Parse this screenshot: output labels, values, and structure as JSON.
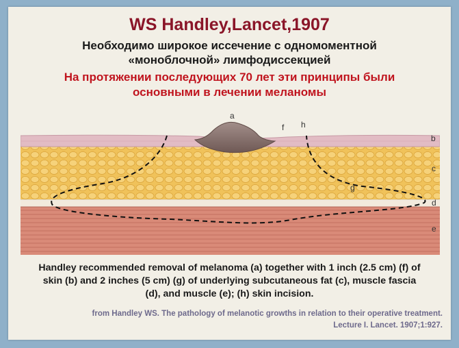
{
  "title": "WS Handley,Lancet,1907",
  "subtitle_line1": "Необходимо широкое иссечение с одномоментной",
  "subtitle_line2": "«моноблочной» лимфодиссекцией",
  "highlight_line1": "На протяжении последующих 70 лет эти принципы были",
  "highlight_line2": "основными в лечении меланомы",
  "diagram": {
    "labels": {
      "a": "a",
      "b": "b",
      "c": "c",
      "d": "d",
      "e": "e",
      "f": "f",
      "g": "g",
      "h": "h"
    },
    "colors": {
      "skin": "#e2bcc4",
      "fat": "#f0c25a",
      "fascia": "#f2eadd",
      "muscle": "#d98a78",
      "tumor": "#8b7571",
      "incision": "#111111"
    }
  },
  "caption_line1": "Handley recommended removal of melanoma (a) together with 1 inch (2.5 cm) (f) of",
  "caption_line2": "skin (b) and 2 inches (5 cm) (g) of underlying subcutaneous fat (c), muscle fascia",
  "caption_line3": "(d), and muscle (e); (h) skin incision.",
  "citation_line1": "from Handley WS. The pathology of melanotic growths in relation to their operative treatment.",
  "citation_line2": "Lecture I. Lancet. 1907;1:927."
}
